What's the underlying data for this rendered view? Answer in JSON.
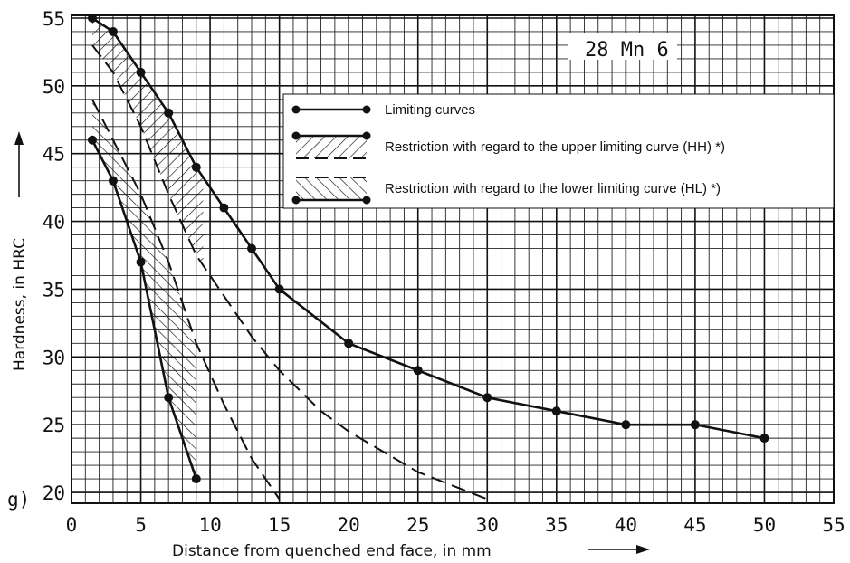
{
  "chart_data": {
    "type": "line",
    "title": "",
    "steel_grade": "28 Mn 6",
    "panel_label": "g)",
    "xlabel": "Distance from quenched end face, in mm",
    "ylabel": "Hardness, in HRC",
    "xlim": [
      0,
      55
    ],
    "ylim": [
      19.2,
      55.2
    ],
    "x_ticks": [
      0,
      5,
      10,
      15,
      20,
      25,
      30,
      35,
      40,
      45,
      50,
      55
    ],
    "y_ticks": [
      20,
      25,
      30,
      35,
      40,
      45,
      50,
      55
    ],
    "grid": true,
    "legend_position": "top-right",
    "legend": [
      {
        "label": "Limiting curves",
        "style": "solid-with-markers"
      },
      {
        "label": "Restriction with regard to the upper limiting curve (HH) *)",
        "style": "hatch-forward"
      },
      {
        "label": "Restriction with regard to the lower limiting curve (HL) *)",
        "style": "hatch-backward"
      }
    ],
    "series": [
      {
        "role": "upper-limiting-curve",
        "style": "solid",
        "markers": true,
        "x": [
          1.5,
          3,
          5,
          7,
          9,
          11,
          13,
          15,
          20,
          25,
          30,
          35,
          40,
          45,
          50
        ],
        "y": [
          55,
          54,
          51,
          48,
          44,
          41,
          38,
          35,
          31,
          29,
          27,
          26,
          25,
          25,
          24
        ]
      },
      {
        "role": "lower-limiting-curve",
        "style": "solid",
        "markers": true,
        "x": [
          1.5,
          3,
          5,
          7,
          9
        ],
        "y": [
          46,
          43,
          37,
          27,
          21
        ]
      },
      {
        "role": "restricted-upper-curve-HH",
        "style": "dashed",
        "markers": false,
        "x": [
          1.5,
          3,
          5,
          7,
          9,
          11,
          13,
          15,
          18,
          20,
          25,
          30
        ],
        "y": [
          53,
          51,
          47,
          42,
          37.5,
          34.5,
          31.5,
          29,
          26,
          24.5,
          21.5,
          19.5
        ]
      },
      {
        "role": "restricted-lower-curve-HL",
        "style": "dashed",
        "markers": false,
        "x": [
          1.5,
          3,
          5,
          7,
          9,
          11,
          13,
          15
        ],
        "y": [
          49,
          46,
          42,
          37,
          31,
          26.5,
          22.5,
          19.5
        ]
      }
    ]
  }
}
